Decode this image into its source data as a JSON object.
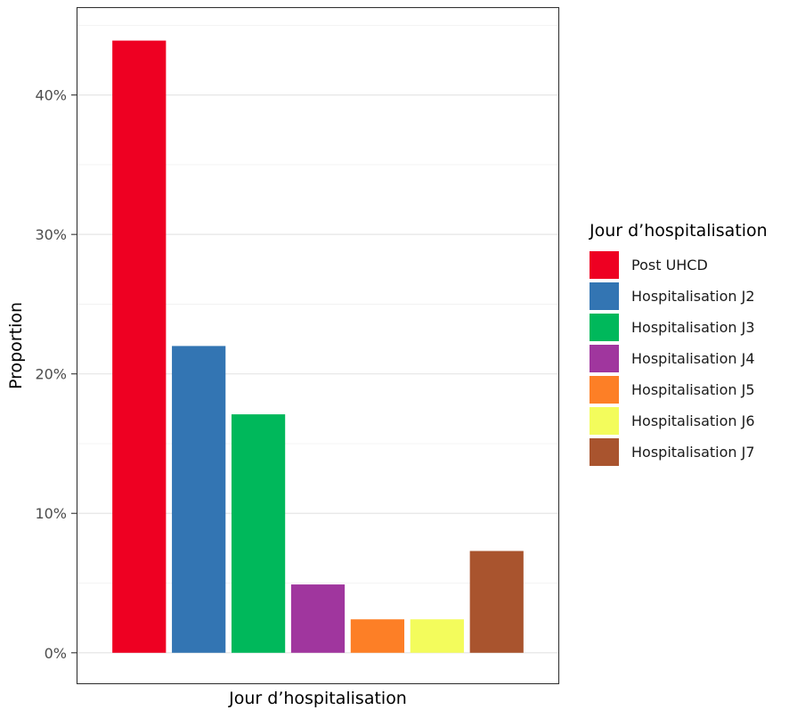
{
  "chart_data": {
    "type": "bar",
    "categories": [
      "Post UHCD",
      "Hospitalisation J2",
      "Hospitalisation J3",
      "Hospitalisation J4",
      "Hospitalisation J5",
      "Hospitalisation J6",
      "Hospitalisation J7"
    ],
    "values": [
      0.439,
      0.22,
      0.171,
      0.049,
      0.024,
      0.024,
      0.073
    ],
    "colors": [
      "#EE0022",
      "#3375B3",
      "#00B85B",
      "#A0369E",
      "#FD7F26",
      "#F3FC5C",
      "#A9542E"
    ],
    "xlabel": "Jour d’hospitalisation",
    "ylabel": "Proportion",
    "ylim": [
      -0.0225,
      0.463
    ],
    "yticks": [
      0,
      0.1,
      0.2,
      0.3,
      0.4
    ],
    "ytick_labels": [
      "0%",
      "10%",
      "20%",
      "30%",
      "40%"
    ],
    "grid": true,
    "legend": {
      "title": "Jour d’hospitalisation",
      "position": "right"
    }
  }
}
